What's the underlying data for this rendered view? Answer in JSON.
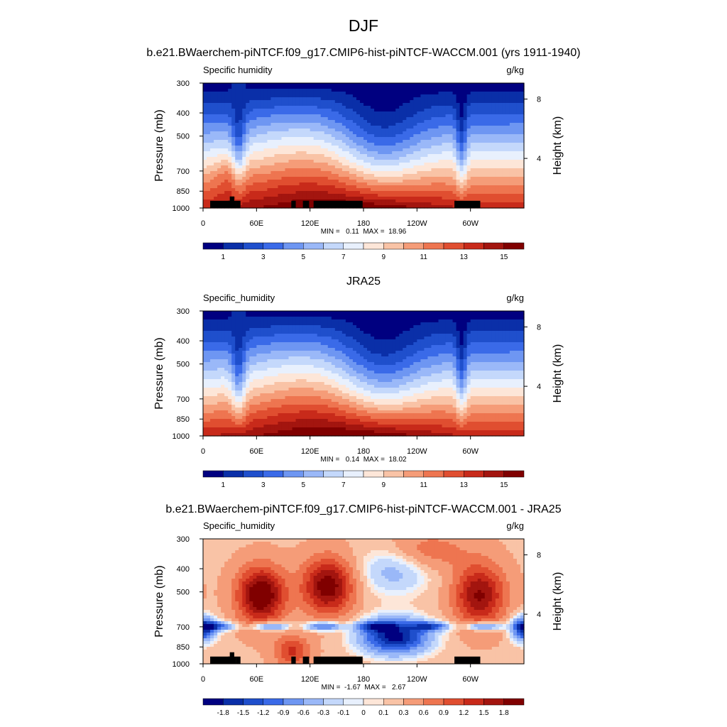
{
  "figure": {
    "main_title": "DJF",
    "panel1_title": "b.e21.BWaerchem-piNTCF.f09_g17.CMIP6-hist-piNTCF-WACCM.001 (yrs 1911-1940)",
    "panel2_title": "JRA25",
    "panel3_title": "b.e21.BWaerchem-piNTCF.f09_g17.CMIP6-hist-piNTCF-WACCM.001 - JRA25"
  },
  "chart_data": [
    {
      "type": "heatmap",
      "variable": "Specific humidity",
      "units": "g/kg",
      "ylabel": "Pressure (mb)",
      "y2label": "Height (km)",
      "x_ticks": [
        "0",
        "60E",
        "120E",
        "180",
        "120W",
        "60W"
      ],
      "x_tick_lon": [
        0,
        60,
        120,
        180,
        240,
        300
      ],
      "xlim": [
        0,
        360
      ],
      "y_ticks": [
        "300",
        "400",
        "500",
        "700",
        "850",
        "1000"
      ],
      "y_tick_p": [
        300,
        400,
        500,
        700,
        850,
        1000
      ],
      "ylim": [
        1000,
        300
      ],
      "y2_ticks": [
        "8",
        "4"
      ],
      "y2_tick_p": [
        350,
        620
      ],
      "stats": "MIN =   0.11  MAX =  18.96",
      "colorbar_labels": [
        "1",
        "3",
        "5",
        "7",
        "9",
        "11",
        "13",
        "15"
      ],
      "colorbar_colors": [
        "#000080",
        "#0a2fa8",
        "#1f4fcc",
        "#3a6ae8",
        "#6e96f2",
        "#9ab8f8",
        "#c4d8fb",
        "#e8f0fd",
        "#fde6d8",
        "#f9c3a6",
        "#f59c78",
        "#ee7550",
        "#e04e30",
        "#c82a1a",
        "#a3150f",
        "#800000"
      ],
      "topography": [
        [
          8,
          32,
          985
        ],
        [
          28,
          37,
          985
        ],
        [
          30,
          35,
          945
        ],
        [
          37,
          42,
          985
        ],
        [
          99,
          104,
          985
        ],
        [
          112,
          119,
          985
        ],
        [
          124,
          179,
          985
        ],
        [
          282,
          311,
          985
        ]
      ]
    },
    {
      "type": "heatmap",
      "variable": "Specific_humidity",
      "units": "g/kg",
      "ylabel": "Pressure (mb)",
      "y2label": "Height (km)",
      "x_ticks": [
        "0",
        "60E",
        "120E",
        "180",
        "120W",
        "60W"
      ],
      "x_tick_lon": [
        0,
        60,
        120,
        180,
        240,
        300
      ],
      "xlim": [
        0,
        360
      ],
      "y_ticks": [
        "300",
        "400",
        "500",
        "700",
        "850",
        "1000"
      ],
      "y_tick_p": [
        300,
        400,
        500,
        700,
        850,
        1000
      ],
      "ylim": [
        1000,
        300
      ],
      "y2_ticks": [
        "8",
        "4"
      ],
      "y2_tick_p": [
        350,
        620
      ],
      "stats": "MIN =   0.14  MAX =  18.02",
      "colorbar_labels": [
        "1",
        "3",
        "5",
        "7",
        "9",
        "11",
        "13",
        "15"
      ],
      "colorbar_colors": [
        "#000080",
        "#0a2fa8",
        "#1f4fcc",
        "#3a6ae8",
        "#6e96f2",
        "#9ab8f8",
        "#c4d8fb",
        "#e8f0fd",
        "#fde6d8",
        "#f9c3a6",
        "#f59c78",
        "#ee7550",
        "#e04e30",
        "#c82a1a",
        "#a3150f",
        "#800000"
      ],
      "topography": []
    },
    {
      "type": "heatmap",
      "variable": "Specific_humidity",
      "units": "g/kg",
      "ylabel": "Pressure (mb)",
      "y2label": "Height (km)",
      "x_ticks": [
        "0",
        "60E",
        "120E",
        "180",
        "120W",
        "60W"
      ],
      "x_tick_lon": [
        0,
        60,
        120,
        180,
        240,
        300
      ],
      "xlim": [
        0,
        360
      ],
      "y_ticks": [
        "300",
        "400",
        "500",
        "700",
        "850",
        "1000"
      ],
      "y_tick_p": [
        300,
        400,
        500,
        700,
        850,
        1000
      ],
      "ylim": [
        1000,
        300
      ],
      "y2_ticks": [
        "8",
        "4"
      ],
      "y2_tick_p": [
        350,
        620
      ],
      "stats": "MIN =  -1.67  MAX =   2.67",
      "colorbar_labels": [
        "-1.8",
        "-1.5",
        "-1.2",
        "-0.9",
        "-0.6",
        "-0.3",
        "-0.1",
        "0",
        "0.1",
        "0.3",
        "0.6",
        "0.9",
        "1.2",
        "1.5",
        "1.8"
      ],
      "colorbar_colors": [
        "#000080",
        "#0a2fa8",
        "#1f4fcc",
        "#3a6ae8",
        "#6e96f2",
        "#9ab8f8",
        "#c4d8fb",
        "#e8f0fd",
        "#fde6d8",
        "#f9c3a6",
        "#f59c78",
        "#ee7550",
        "#e04e30",
        "#c82a1a",
        "#a3150f",
        "#800000"
      ],
      "topography": [
        [
          8,
          32,
          985
        ],
        [
          28,
          37,
          985
        ],
        [
          30,
          35,
          945
        ],
        [
          37,
          42,
          985
        ],
        [
          99,
          104,
          985
        ],
        [
          112,
          119,
          985
        ],
        [
          124,
          179,
          985
        ],
        [
          282,
          311,
          985
        ]
      ]
    }
  ]
}
